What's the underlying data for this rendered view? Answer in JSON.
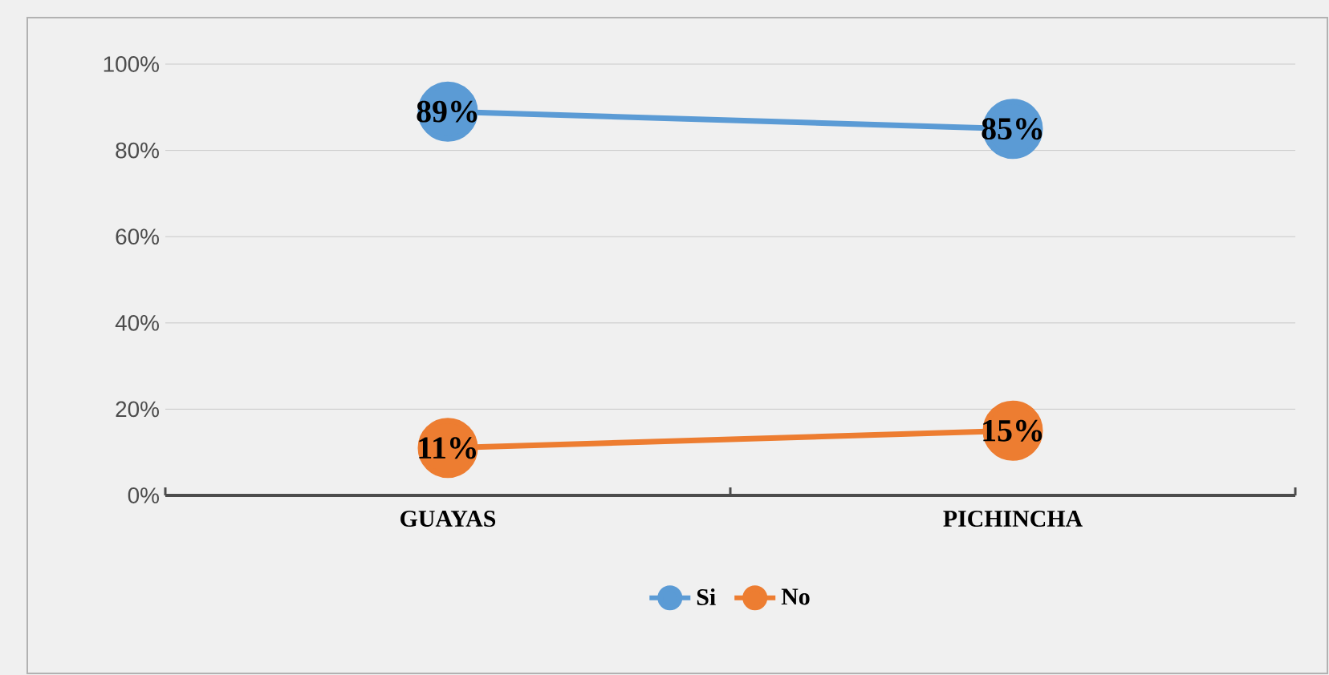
{
  "chart_data": {
    "type": "line",
    "categories": [
      "GUAYAS",
      "PICHINCHA"
    ],
    "series": [
      {
        "name": "Si",
        "color": "#5b9bd5",
        "values": [
          89,
          85
        ],
        "value_labels": [
          "89%",
          "85%"
        ]
      },
      {
        "name": "No",
        "color": "#ed7d31",
        "values": [
          11,
          15
        ],
        "value_labels": [
          "11%",
          "15%"
        ]
      }
    ],
    "ylim": [
      0,
      100
    ],
    "yticks": [
      {
        "value": 0,
        "label": "0%"
      },
      {
        "value": 20,
        "label": "20%"
      },
      {
        "value": 40,
        "label": "40%"
      },
      {
        "value": 60,
        "label": "60%"
      },
      {
        "value": 80,
        "label": "80%"
      },
      {
        "value": 100,
        "label": "100%"
      }
    ],
    "grid": "y",
    "legend": "bottom",
    "marker": "circle",
    "line_style": "solid"
  }
}
